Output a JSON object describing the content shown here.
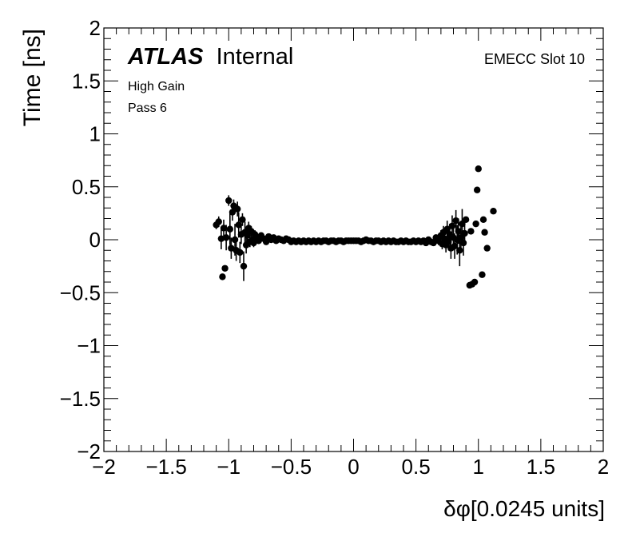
{
  "chart_data": {
    "type": "scatter",
    "title": "",
    "xlabel": "δφ[0.0245 units]",
    "ylabel": "Time [ns]",
    "xlim": [
      -2,
      2
    ],
    "ylim": [
      -2,
      2
    ],
    "x_ticks": [
      -2,
      -1.5,
      -1,
      -0.5,
      0,
      0.5,
      1,
      1.5,
      2
    ],
    "x_tick_labels": [
      "−2",
      "−1.5",
      "−1",
      "−0.5",
      "0",
      "0.5",
      "1",
      "1.5",
      "2"
    ],
    "y_ticks": [
      -2,
      -1.5,
      -1,
      -0.5,
      0,
      0.5,
      1,
      1.5,
      2
    ],
    "y_tick_labels": [
      "−2",
      "−1.5",
      "−1",
      "−0.5",
      "0",
      "0.5",
      "1",
      "1.5",
      "2"
    ],
    "grid": false,
    "annotations": {
      "experiment": "ATLAS",
      "status": "Internal",
      "line1": "High Gain",
      "line2": "Pass 6",
      "slot": "EMECC Slot 10"
    },
    "series": [
      {
        "marker": "filled-circle",
        "color": "#000000",
        "points": [
          {
            "x": -1.1,
            "y": 0.14,
            "err": 0.04
          },
          {
            "x": -1.08,
            "y": 0.17,
            "err": 0.05
          },
          {
            "x": -1.06,
            "y": 0.01,
            "err": 0.1
          },
          {
            "x": -1.05,
            "y": -0.35,
            "err": 0.0
          },
          {
            "x": -1.04,
            "y": 0.11,
            "err": 0.08
          },
          {
            "x": -1.03,
            "y": -0.27,
            "err": 0.0
          },
          {
            "x": -1.02,
            "y": 0.02,
            "err": 0.12
          },
          {
            "x": -1.0,
            "y": 0.37,
            "err": 0.05
          },
          {
            "x": -0.99,
            "y": 0.1,
            "err": 0.15
          },
          {
            "x": -0.98,
            "y": -0.08,
            "err": 0.1
          },
          {
            "x": -0.97,
            "y": 0.26,
            "err": 0.08
          },
          {
            "x": -0.96,
            "y": 0.32,
            "err": 0.06
          },
          {
            "x": -0.95,
            "y": 0.0,
            "err": 0.15
          },
          {
            "x": -0.94,
            "y": -0.1,
            "err": 0.1
          },
          {
            "x": -0.93,
            "y": 0.29,
            "err": 0.07
          },
          {
            "x": -0.92,
            "y": 0.14,
            "err": 0.12
          },
          {
            "x": -0.91,
            "y": -0.12,
            "err": 0.1
          },
          {
            "x": -0.9,
            "y": 0.05,
            "err": 0.09
          },
          {
            "x": -0.89,
            "y": 0.19,
            "err": 0.06
          },
          {
            "x": -0.88,
            "y": -0.25,
            "err": 0.14
          },
          {
            "x": -0.87,
            "y": 0.07,
            "err": 0.1
          },
          {
            "x": -0.86,
            "y": -0.05,
            "err": 0.08
          },
          {
            "x": -0.85,
            "y": 0.04,
            "err": 0.06
          },
          {
            "x": -0.84,
            "y": 0.11,
            "err": 0.06
          },
          {
            "x": -0.83,
            "y": -0.02,
            "err": 0.05
          },
          {
            "x": -0.82,
            "y": 0.08,
            "err": 0.05
          },
          {
            "x": -0.81,
            "y": 0.0,
            "err": 0.05
          },
          {
            "x": -0.8,
            "y": -0.03,
            "err": 0.04
          },
          {
            "x": -0.79,
            "y": 0.05,
            "err": 0.04
          },
          {
            "x": -0.78,
            "y": 0.02,
            "err": 0.03
          },
          {
            "x": -0.76,
            "y": -0.01,
            "err": 0.03
          },
          {
            "x": -0.74,
            "y": 0.04,
            "err": 0.03
          },
          {
            "x": -0.72,
            "y": 0.01,
            "err": 0.02
          },
          {
            "x": -0.7,
            "y": -0.02,
            "err": 0.02
          },
          {
            "x": -0.68,
            "y": 0.03,
            "err": 0.02
          },
          {
            "x": -0.66,
            "y": 0.0,
            "err": 0.02
          },
          {
            "x": -0.64,
            "y": 0.02,
            "err": 0.02
          },
          {
            "x": -0.62,
            "y": -0.01,
            "err": 0.01
          },
          {
            "x": -0.6,
            "y": 0.01,
            "err": 0.01
          },
          {
            "x": -0.58,
            "y": 0.0,
            "err": 0.01
          },
          {
            "x": -0.56,
            "y": -0.01,
            "err": 0.01
          },
          {
            "x": -0.54,
            "y": 0.01,
            "err": 0.01
          },
          {
            "x": -0.52,
            "y": 0.0,
            "err": 0.01
          },
          {
            "x": -0.5,
            "y": -0.02,
            "err": 0.01
          },
          {
            "x": -0.48,
            "y": -0.01,
            "err": 0.01
          },
          {
            "x": -0.46,
            "y": -0.02,
            "err": 0.01
          },
          {
            "x": -0.44,
            "y": -0.01,
            "err": 0.01
          },
          {
            "x": -0.42,
            "y": -0.02,
            "err": 0.01
          },
          {
            "x": -0.4,
            "y": -0.01,
            "err": 0.01
          },
          {
            "x": -0.38,
            "y": -0.02,
            "err": 0.01
          },
          {
            "x": -0.36,
            "y": -0.01,
            "err": 0.01
          },
          {
            "x": -0.34,
            "y": -0.02,
            "err": 0.01
          },
          {
            "x": -0.32,
            "y": -0.01,
            "err": 0.01
          },
          {
            "x": -0.3,
            "y": -0.02,
            "err": 0.01
          },
          {
            "x": -0.28,
            "y": -0.01,
            "err": 0.01
          },
          {
            "x": -0.26,
            "y": -0.02,
            "err": 0.01
          },
          {
            "x": -0.24,
            "y": -0.01,
            "err": 0.01
          },
          {
            "x": -0.22,
            "y": -0.01,
            "err": 0.01
          },
          {
            "x": -0.2,
            "y": -0.02,
            "err": 0.01
          },
          {
            "x": -0.18,
            "y": -0.01,
            "err": 0.01
          },
          {
            "x": -0.16,
            "y": -0.01,
            "err": 0.01
          },
          {
            "x": -0.14,
            "y": -0.02,
            "err": 0.01
          },
          {
            "x": -0.12,
            "y": -0.01,
            "err": 0.01
          },
          {
            "x": -0.1,
            "y": -0.01,
            "err": 0.01
          },
          {
            "x": -0.08,
            "y": -0.02,
            "err": 0.01
          },
          {
            "x": -0.06,
            "y": -0.01,
            "err": 0.01
          },
          {
            "x": -0.04,
            "y": -0.01,
            "err": 0.01
          },
          {
            "x": -0.02,
            "y": -0.01,
            "err": 0.01
          },
          {
            "x": 0.0,
            "y": -0.01,
            "err": 0.01
          },
          {
            "x": 0.02,
            "y": -0.01,
            "err": 0.01
          },
          {
            "x": 0.04,
            "y": -0.01,
            "err": 0.01
          },
          {
            "x": 0.06,
            "y": -0.02,
            "err": 0.01
          },
          {
            "x": 0.08,
            "y": -0.01,
            "err": 0.01
          },
          {
            "x": 0.1,
            "y": 0.0,
            "err": 0.01
          },
          {
            "x": 0.12,
            "y": -0.01,
            "err": 0.01
          },
          {
            "x": 0.14,
            "y": -0.01,
            "err": 0.01
          },
          {
            "x": 0.16,
            "y": -0.02,
            "err": 0.01
          },
          {
            "x": 0.18,
            "y": -0.01,
            "err": 0.01
          },
          {
            "x": 0.2,
            "y": -0.01,
            "err": 0.01
          },
          {
            "x": 0.22,
            "y": -0.02,
            "err": 0.01
          },
          {
            "x": 0.24,
            "y": -0.01,
            "err": 0.01
          },
          {
            "x": 0.26,
            "y": -0.02,
            "err": 0.01
          },
          {
            "x": 0.28,
            "y": -0.01,
            "err": 0.01
          },
          {
            "x": 0.3,
            "y": -0.02,
            "err": 0.01
          },
          {
            "x": 0.32,
            "y": -0.01,
            "err": 0.01
          },
          {
            "x": 0.34,
            "y": -0.02,
            "err": 0.01
          },
          {
            "x": 0.36,
            "y": -0.02,
            "err": 0.01
          },
          {
            "x": 0.38,
            "y": -0.01,
            "err": 0.01
          },
          {
            "x": 0.4,
            "y": -0.02,
            "err": 0.01
          },
          {
            "x": 0.42,
            "y": -0.01,
            "err": 0.01
          },
          {
            "x": 0.44,
            "y": -0.02,
            "err": 0.01
          },
          {
            "x": 0.46,
            "y": -0.02,
            "err": 0.01
          },
          {
            "x": 0.48,
            "y": -0.01,
            "err": 0.01
          },
          {
            "x": 0.5,
            "y": -0.02,
            "err": 0.01
          },
          {
            "x": 0.52,
            "y": -0.01,
            "err": 0.01
          },
          {
            "x": 0.54,
            "y": -0.02,
            "err": 0.02
          },
          {
            "x": 0.56,
            "y": -0.01,
            "err": 0.02
          },
          {
            "x": 0.58,
            "y": -0.03,
            "err": 0.02
          },
          {
            "x": 0.6,
            "y": 0.0,
            "err": 0.02
          },
          {
            "x": 0.62,
            "y": -0.02,
            "err": 0.02
          },
          {
            "x": 0.64,
            "y": -0.03,
            "err": 0.02
          },
          {
            "x": 0.66,
            "y": 0.02,
            "err": 0.03
          },
          {
            "x": 0.68,
            "y": -0.01,
            "err": 0.04
          },
          {
            "x": 0.7,
            "y": 0.04,
            "err": 0.05
          },
          {
            "x": 0.71,
            "y": -0.04,
            "err": 0.05
          },
          {
            "x": 0.72,
            "y": 0.07,
            "err": 0.06
          },
          {
            "x": 0.73,
            "y": 0.01,
            "err": 0.06
          },
          {
            "x": 0.74,
            "y": -0.05,
            "err": 0.07
          },
          {
            "x": 0.75,
            "y": 0.1,
            "err": 0.08
          },
          {
            "x": 0.76,
            "y": -0.02,
            "err": 0.08
          },
          {
            "x": 0.77,
            "y": 0.05,
            "err": 0.1
          },
          {
            "x": 0.78,
            "y": -0.08,
            "err": 0.1
          },
          {
            "x": 0.79,
            "y": 0.13,
            "err": 0.1
          },
          {
            "x": 0.8,
            "y": 0.02,
            "err": 0.12
          },
          {
            "x": 0.81,
            "y": -0.06,
            "err": 0.12
          },
          {
            "x": 0.82,
            "y": 0.18,
            "err": 0.1
          },
          {
            "x": 0.83,
            "y": 0.0,
            "err": 0.14
          },
          {
            "x": 0.84,
            "y": 0.08,
            "err": 0.12
          },
          {
            "x": 0.85,
            "y": -0.1,
            "err": 0.15
          },
          {
            "x": 0.86,
            "y": 0.02,
            "err": 0.12
          },
          {
            "x": 0.87,
            "y": 0.15,
            "err": 0.14
          },
          {
            "x": 0.88,
            "y": -0.03,
            "err": 0.12
          },
          {
            "x": 0.89,
            "y": 0.06,
            "err": 0.1
          },
          {
            "x": 0.9,
            "y": 0.19,
            "err": 0.0
          },
          {
            "x": 0.93,
            "y": -0.43,
            "err": 0.0
          },
          {
            "x": 0.94,
            "y": 0.08,
            "err": 0.0
          },
          {
            "x": 0.95,
            "y": -0.42,
            "err": 0.0
          },
          {
            "x": 0.97,
            "y": -0.4,
            "err": 0.0
          },
          {
            "x": 0.98,
            "y": 0.15,
            "err": 0.0
          },
          {
            "x": 0.99,
            "y": 0.47,
            "err": 0.0
          },
          {
            "x": 1.0,
            "y": 0.67,
            "err": 0.0
          },
          {
            "x": 1.03,
            "y": -0.33,
            "err": 0.0
          },
          {
            "x": 1.04,
            "y": 0.19,
            "err": 0.0
          },
          {
            "x": 1.05,
            "y": 0.07,
            "err": 0.0
          },
          {
            "x": 1.07,
            "y": -0.08,
            "err": 0.0
          },
          {
            "x": 1.12,
            "y": 0.27,
            "err": 0.0
          }
        ]
      }
    ]
  }
}
